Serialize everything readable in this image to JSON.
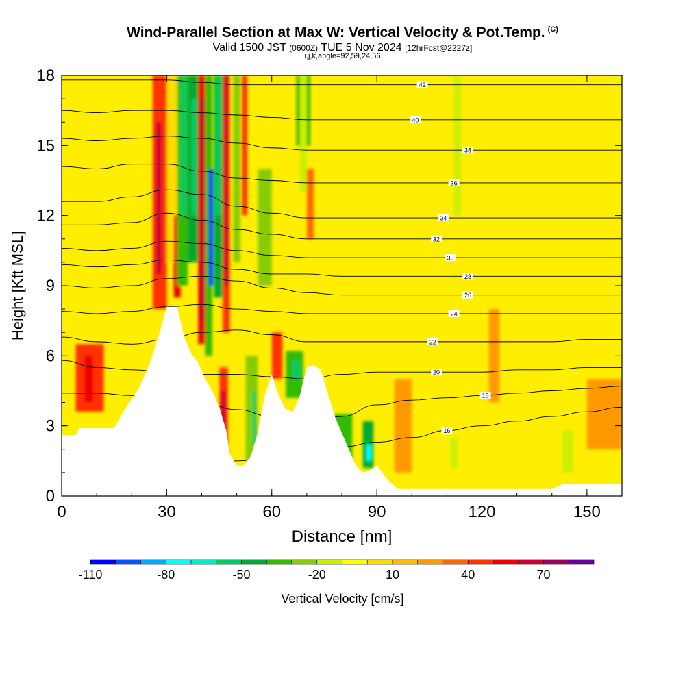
{
  "header": {
    "title": "Wind-Parallel Section at Max W: Vertical Velocity & Pot.Temp.",
    "copyright": "(C)",
    "valid_prefix": "Valid 1500 JST",
    "valid_zulu": "(0600Z)",
    "valid_date": "TUE 5 Nov 2024",
    "forecast": "[12hrFcst@2227z]",
    "indices": "i,j,k,angle=92,59,24,56"
  },
  "chart_data": {
    "type": "heatmap",
    "xlabel": "Distance [nm]",
    "ylabel": "Height [Kft MSL]",
    "xlim": [
      0,
      160
    ],
    "ylim": [
      0,
      18
    ],
    "x_ticks": [
      0,
      30,
      60,
      90,
      120,
      150
    ],
    "y_ticks": [
      0,
      3,
      6,
      9,
      12,
      15,
      18
    ],
    "terrain": {
      "x": [
        0,
        4,
        5,
        15,
        18,
        22,
        25,
        28,
        30,
        33,
        35,
        37,
        39,
        41,
        43,
        45,
        47,
        48,
        50,
        52,
        54,
        56,
        58,
        60,
        62,
        64,
        66,
        68,
        70,
        72,
        74,
        76,
        78,
        80,
        82,
        84,
        86,
        88,
        90,
        93,
        96,
        100,
        110,
        120,
        130,
        140,
        143,
        150,
        160
      ],
      "height": [
        2.6,
        2.6,
        2.9,
        2.9,
        3.7,
        4.6,
        5.6,
        7.0,
        8.1,
        8.1,
        6.8,
        6.1,
        5.7,
        5.0,
        4.5,
        3.8,
        2.8,
        1.8,
        1.3,
        1.3,
        1.7,
        2.7,
        4.3,
        5.2,
        4.3,
        3.7,
        3.6,
        4.3,
        5.5,
        5.6,
        5.4,
        4.4,
        3.4,
        2.7,
        2.0,
        1.3,
        1.0,
        1.1,
        1.3,
        0.7,
        0.3,
        0.3,
        0.3,
        0.3,
        0.3,
        0.3,
        0.5,
        0.5,
        0.5
      ]
    },
    "wcells": [
      {
        "x0": 4,
        "x1": 12,
        "y0": 3.6,
        "y1": 6.5,
        "w": 45
      },
      {
        "x0": 6.5,
        "x1": 9,
        "y0": 4.0,
        "y1": 6.0,
        "w": 55
      },
      {
        "x0": 26,
        "x1": 30,
        "y0": 8.0,
        "y1": 18,
        "w": 45
      },
      {
        "x0": 27,
        "x1": 28.5,
        "y0": 9.5,
        "y1": 16,
        "w": 60
      },
      {
        "x0": 30,
        "x1": 33,
        "y0": 10,
        "y1": 18,
        "w": 5
      },
      {
        "x0": 32,
        "x1": 34,
        "y0": 8.5,
        "y1": 12,
        "w": 50
      },
      {
        "x0": 33,
        "x1": 36,
        "y0": 9,
        "y1": 18,
        "w": -40
      },
      {
        "x0": 34,
        "x1": 35.5,
        "y0": 12,
        "y1": 18,
        "w": -55
      },
      {
        "x0": 36,
        "x1": 39,
        "y0": 10,
        "y1": 18,
        "w": -45
      },
      {
        "x0": 37,
        "x1": 38.5,
        "y0": 12,
        "y1": 17,
        "w": -60
      },
      {
        "x0": 39,
        "x1": 41,
        "y0": 6.5,
        "y1": 18,
        "w": 50
      },
      {
        "x0": 39.5,
        "x1": 40.8,
        "y0": 7.5,
        "y1": 17,
        "w": 65
      },
      {
        "x0": 41,
        "x1": 43,
        "y0": 6,
        "y1": 18,
        "w": -35
      },
      {
        "x0": 42,
        "x1": 43.3,
        "y0": 9,
        "y1": 14,
        "w": -95
      },
      {
        "x0": 43.5,
        "x1": 46,
        "y0": 8.5,
        "y1": 18,
        "w": -45
      },
      {
        "x0": 44,
        "x1": 45.5,
        "y0": 12,
        "y1": 18,
        "w": -60
      },
      {
        "x0": 46,
        "x1": 48,
        "y0": 7,
        "y1": 18,
        "w": 45
      },
      {
        "x0": 46.5,
        "x1": 47.5,
        "y0": 9,
        "y1": 18,
        "w": 60
      },
      {
        "x0": 45,
        "x1": 47.5,
        "y0": 1.8,
        "y1": 5.5,
        "w": 45
      },
      {
        "x0": 45.5,
        "x1": 46.8,
        "y0": 2.0,
        "y1": 4.5,
        "w": 60
      },
      {
        "x0": 49,
        "x1": 51,
        "y0": 10,
        "y1": 18,
        "w": -30
      },
      {
        "x0": 51.5,
        "x1": 53,
        "y0": 12,
        "y1": 18,
        "w": 45
      },
      {
        "x0": 52.5,
        "x1": 56,
        "y0": 1.5,
        "y1": 6.0,
        "w": -30
      },
      {
        "x0": 54.5,
        "x1": 55.5,
        "y0": 2.2,
        "y1": 4.5,
        "w": -55
      },
      {
        "x0": 56,
        "x1": 60,
        "y0": 9,
        "y1": 14,
        "w": -25
      },
      {
        "x0": 60,
        "x1": 63,
        "y0": 5,
        "y1": 7,
        "w": 40
      },
      {
        "x0": 64,
        "x1": 69,
        "y0": 4.2,
        "y1": 6.2,
        "w": -40
      },
      {
        "x0": 66,
        "x1": 68,
        "y0": 5.0,
        "y1": 5.8,
        "w": -55
      },
      {
        "x0": 67,
        "x1": 71,
        "y0": 15,
        "y1": 18,
        "w": -35
      },
      {
        "x0": 68,
        "x1": 70,
        "y0": 13,
        "y1": 18,
        "w": -20
      },
      {
        "x0": 70,
        "x1": 72,
        "y0": 11,
        "y1": 14,
        "w": 30
      },
      {
        "x0": 78,
        "x1": 83,
        "y0": 1.5,
        "y1": 3.5,
        "w": -40
      },
      {
        "x0": 86,
        "x1": 89,
        "y0": 1.2,
        "y1": 3.2,
        "w": -50
      },
      {
        "x0": 87,
        "x1": 88.5,
        "y0": 1.5,
        "y1": 2.2,
        "w": -75
      },
      {
        "x0": 95,
        "x1": 100,
        "y0": 1.0,
        "y1": 5.0,
        "w": 25
      },
      {
        "x0": 112,
        "x1": 114,
        "y0": 12,
        "y1": 18,
        "w": -18
      },
      {
        "x0": 111,
        "x1": 113,
        "y0": 1.2,
        "y1": 2.5,
        "w": -20
      },
      {
        "x0": 143,
        "x1": 146,
        "y0": 1.0,
        "y1": 2.8,
        "w": -20
      },
      {
        "x0": 122,
        "x1": 125,
        "y0": 4,
        "y1": 8,
        "w": 22
      },
      {
        "x0": 150,
        "x1": 160,
        "y0": 2,
        "y1": 5,
        "w": 22
      }
    ],
    "contours": [
      {
        "label": "16",
        "y": [
          0.5,
          0.7,
          0.9,
          1.1,
          1.3,
          1.5,
          1.7,
          1.9,
          2.1,
          2.3,
          2.5,
          2.8,
          3.0,
          3.2,
          3.4,
          3.6,
          3.8
        ],
        "label_x": 110
      },
      {
        "label": "18",
        "y": [
          4.4,
          4.4,
          4.3,
          4.2,
          4.0,
          3.7,
          3.4,
          3.0,
          3.4,
          3.9,
          4.1,
          4.2,
          4.3,
          4.4,
          4.5,
          4.6,
          4.7
        ],
        "label_x": 121
      },
      {
        "label": "20",
        "y": [
          5.8,
          5.5,
          5.4,
          5.3,
          5.2,
          5.2,
          5.1,
          5.0,
          5.2,
          5.3,
          5.3,
          5.3,
          5.3,
          5.4,
          5.4,
          5.5,
          5.5
        ],
        "label_x": 107
      },
      {
        "label": "22",
        "y": [
          6.8,
          6.6,
          6.5,
          6.7,
          7.0,
          7.1,
          6.9,
          6.6,
          6.6,
          6.6,
          6.6,
          6.6,
          6.6,
          6.6,
          6.6,
          6.7,
          6.7
        ],
        "label_x": 106
      },
      {
        "label": "24",
        "y": [
          7.9,
          7.8,
          7.9,
          8.1,
          8.2,
          8.0,
          7.9,
          7.8,
          7.8,
          7.8,
          7.8,
          7.8,
          7.8,
          7.8,
          7.8,
          7.8,
          7.8
        ],
        "label_x": 112
      },
      {
        "label": "26",
        "y": [
          9.0,
          8.9,
          9.0,
          9.3,
          9.4,
          9.2,
          8.9,
          8.7,
          8.6,
          8.6,
          8.6,
          8.6,
          8.6,
          8.6,
          8.6,
          8.6,
          8.6
        ],
        "label_x": 116
      },
      {
        "label": "28",
        "y": [
          9.9,
          9.8,
          9.9,
          10.1,
          10.0,
          9.7,
          9.5,
          9.5,
          9.4,
          9.4,
          9.4,
          9.4,
          9.4,
          9.4,
          9.4,
          9.4,
          9.4
        ],
        "label_x": 116
      },
      {
        "label": "30",
        "y": [
          10.6,
          10.5,
          10.6,
          10.9,
          10.8,
          10.5,
          10.3,
          10.2,
          10.2,
          10.2,
          10.2,
          10.2,
          10.2,
          10.2,
          10.2,
          10.2,
          10.2
        ],
        "label_x": 111
      },
      {
        "label": "32",
        "y": [
          11.6,
          11.6,
          11.7,
          12.1,
          11.8,
          11.4,
          11.2,
          11.0,
          11.0,
          11.0,
          11.0,
          11.0,
          11.0,
          11.0,
          11.0,
          11.0,
          11.0
        ],
        "label_x": 107
      },
      {
        "label": "34",
        "y": [
          12.6,
          12.6,
          12.8,
          13.1,
          12.9,
          12.4,
          12.1,
          11.9,
          11.9,
          11.9,
          11.9,
          11.9,
          11.9,
          11.9,
          11.9,
          11.9,
          11.9
        ],
        "label_x": 109
      },
      {
        "label": "36",
        "y": [
          14.1,
          14.0,
          14.2,
          14.2,
          13.9,
          13.6,
          13.5,
          13.4,
          13.4,
          13.4,
          13.4,
          13.4,
          13.4,
          13.4,
          13.4,
          13.4,
          13.4
        ],
        "label_x": 112
      },
      {
        "label": "38",
        "y": [
          15.3,
          15.2,
          15.3,
          15.4,
          15.3,
          15.1,
          14.9,
          14.8,
          14.8,
          14.8,
          14.8,
          14.8,
          14.8,
          14.8,
          14.8,
          14.8,
          14.8
        ],
        "label_x": 116
      },
      {
        "label": "40",
        "y": [
          16.5,
          16.4,
          16.5,
          16.5,
          16.4,
          16.3,
          16.2,
          16.1,
          16.1,
          16.1,
          16.1,
          16.1,
          16.1,
          16.1,
          16.1,
          16.1,
          16.1
        ],
        "label_x": 101
      },
      {
        "label": "42",
        "y": [
          17.8,
          17.8,
          17.8,
          17.8,
          17.7,
          17.6,
          17.6,
          17.6,
          17.6,
          17.6,
          17.6,
          17.6,
          17.6,
          17.6,
          17.6,
          17.6,
          17.6
        ],
        "label_x": 103
      }
    ],
    "contour_x": [
      0,
      10,
      20,
      30,
      40,
      50,
      60,
      70,
      80,
      90,
      100,
      110,
      120,
      130,
      140,
      150,
      160
    ],
    "colorbar": {
      "levels": [
        -110,
        -100,
        -90,
        -80,
        -70,
        -60,
        -50,
        -40,
        -30,
        -20,
        -10,
        0,
        10,
        20,
        30,
        40,
        50,
        60,
        70,
        80,
        90
      ],
      "colors": [
        "#0000ff",
        "#0055ff",
        "#00aaff",
        "#00ffff",
        "#00eecc",
        "#00cc66",
        "#00aa33",
        "#33bb00",
        "#88cc00",
        "#ccee00",
        "#ffff00",
        "#ffdd00",
        "#ffbb00",
        "#ff9900",
        "#ff6600",
        "#ff3300",
        "#ee0000",
        "#cc0033",
        "#990066",
        "#660099"
      ],
      "tick_values": [
        -110,
        -80,
        -50,
        -20,
        10,
        40,
        70
      ],
      "label": "Vertical Velocity [cm/s]"
    },
    "grid": false
  }
}
